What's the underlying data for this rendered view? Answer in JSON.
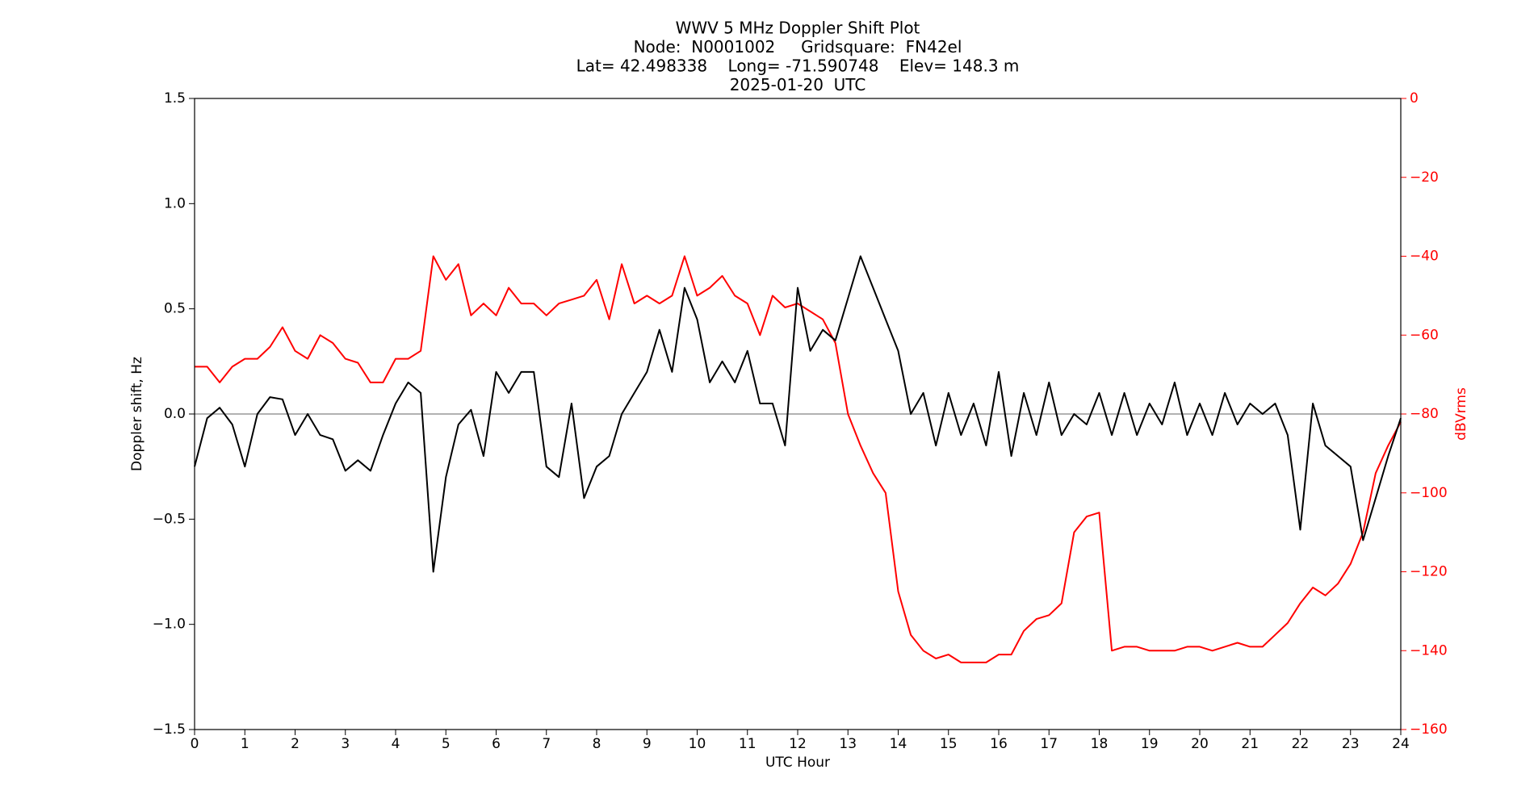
{
  "chart_data": {
    "type": "line",
    "title": [
      "WWV 5 MHz Doppler Shift Plot",
      "Node:  N0001002     Gridsquare:  FN42el",
      "Lat= 42.498338    Long= -71.590748    Elev= 148.3 m",
      "2025-01-20  UTC"
    ],
    "x_label": "UTC Hour",
    "y_label": "Doppler shift, Hz",
    "y2_label": "dBVrms",
    "y2_color": "red",
    "x": [
      0,
      0.25,
      0.5,
      0.75,
      1,
      1.25,
      1.5,
      1.75,
      2,
      2.25,
      2.5,
      2.75,
      3,
      3.25,
      3.5,
      3.75,
      4,
      4.25,
      4.5,
      4.75,
      5,
      5.25,
      5.5,
      5.75,
      6,
      6.25,
      6.5,
      6.75,
      7,
      7.25,
      7.5,
      7.75,
      8,
      8.25,
      8.5,
      8.75,
      9,
      9.25,
      9.5,
      9.75,
      10,
      10.25,
      10.5,
      10.75,
      11,
      11.25,
      11.5,
      11.75,
      12,
      12.25,
      12.5,
      12.75,
      13,
      13.25,
      13.5,
      13.75,
      14,
      14.25,
      14.5,
      14.75,
      15,
      15.25,
      15.5,
      15.75,
      16,
      16.25,
      16.5,
      16.75,
      17,
      17.25,
      17.5,
      17.75,
      18,
      18.25,
      18.5,
      18.75,
      19,
      19.25,
      19.5,
      19.75,
      20,
      20.25,
      20.5,
      20.75,
      21,
      21.25,
      21.5,
      21.75,
      22,
      22.25,
      22.5,
      22.75,
      23,
      23.25,
      23.5,
      23.75,
      24
    ],
    "series": [
      {
        "name": "Doppler shift",
        "color": "black",
        "values": [
          -0.25,
          -0.02,
          0.03,
          -0.05,
          -0.25,
          0.0,
          0.08,
          0.07,
          -0.1,
          0.0,
          -0.1,
          -0.12,
          -0.27,
          -0.22,
          -0.27,
          -0.1,
          0.05,
          0.15,
          0.1,
          -0.75,
          -0.3,
          -0.05,
          0.02,
          -0.2,
          0.2,
          0.1,
          0.2,
          0.2,
          -0.25,
          -0.3,
          0.05,
          -0.4,
          -0.25,
          -0.2,
          0.0,
          0.1,
          0.2,
          0.4,
          0.2,
          0.6,
          0.45,
          0.15,
          0.25,
          0.15,
          0.3,
          0.05,
          0.05,
          -0.15,
          0.6,
          0.3,
          0.4,
          0.35,
          0.55,
          0.75,
          0.6,
          0.45,
          0.3,
          0.0,
          0.1,
          -0.15,
          0.1,
          -0.1,
          0.05,
          -0.15,
          0.2,
          -0.2,
          0.1,
          -0.1,
          0.15,
          -0.1,
          0.0,
          -0.05,
          0.1,
          -0.1,
          0.1,
          -0.1,
          0.05,
          -0.05,
          0.15,
          -0.1,
          0.05,
          -0.1,
          0.1,
          -0.05,
          0.05,
          0.0,
          0.05,
          -0.1,
          -0.55,
          0.05,
          -0.15,
          -0.2,
          -0.25,
          -0.6,
          -0.4,
          -0.2,
          -0.02
        ]
      },
      {
        "name": "dBVrms",
        "color": "red",
        "axis": "y2",
        "values": [
          -68,
          -68,
          -72,
          -68,
          -66,
          -66,
          -63,
          -58,
          -64,
          -66,
          -60,
          -62,
          -66,
          -67,
          -72,
          -72,
          -66,
          -66,
          -64,
          -40,
          -46,
          -42,
          -55,
          -52,
          -55,
          -48,
          -52,
          -52,
          -55,
          -52,
          -51,
          -50,
          -46,
          -56,
          -42,
          -52,
          -50,
          -52,
          -50,
          -40,
          -50,
          -48,
          -45,
          -50,
          -52,
          -60,
          -50,
          -53,
          -52,
          -54,
          -56,
          -62,
          -80,
          -88,
          -95,
          -100,
          -125,
          -136,
          -140,
          -142,
          -141,
          -143,
          -143,
          -143,
          -141,
          -141,
          -135,
          -132,
          -131,
          -128,
          -110,
          -106,
          -105,
          -140,
          -139,
          -139,
          -140,
          -140,
          -140,
          -139,
          -139,
          -140,
          -139,
          -138,
          -139,
          -139,
          -136,
          -133,
          -128,
          -124,
          -126,
          -123,
          -118,
          -110,
          -95,
          -88,
          -82
        ]
      }
    ],
    "reference_line": 0,
    "xlim": [
      0,
      24
    ],
    "xticks": [
      0,
      1,
      2,
      3,
      4,
      5,
      6,
      7,
      8,
      9,
      10,
      11,
      12,
      13,
      14,
      15,
      16,
      17,
      18,
      19,
      20,
      21,
      22,
      23,
      24
    ],
    "ylim": [
      -1.5,
      1.5
    ],
    "yticks": [
      {
        "value": -1.5,
        "label": "−1.5"
      },
      {
        "value": -1.0,
        "label": "−1.0"
      },
      {
        "value": -0.5,
        "label": "−0.5"
      },
      {
        "value": 0,
        "label": "0.0"
      },
      0.5,
      {
        "value": 1.0,
        "label": "1.0"
      },
      1.5
    ],
    "y2lim": [
      -160,
      0
    ],
    "y2ticks": [
      {
        "value": -160,
        "label": "−160"
      },
      {
        "value": -140,
        "label": "−140"
      },
      {
        "value": -120,
        "label": "−120"
      },
      {
        "value": -100,
        "label": "−100"
      },
      {
        "value": -80,
        "label": "−80"
      },
      {
        "value": -60,
        "label": "−60"
      },
      {
        "value": -40,
        "label": "−40"
      },
      {
        "value": -20,
        "label": "−20"
      },
      0
    ]
  }
}
